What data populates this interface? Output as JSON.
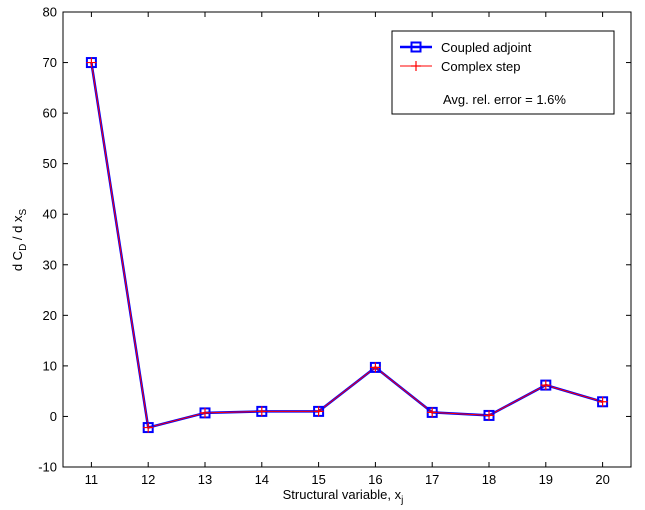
{
  "chart_data": {
    "type": "line",
    "title": "",
    "x": [
      11,
      12,
      13,
      14,
      15,
      16,
      17,
      18,
      19,
      20
    ],
    "xlim": [
      10.5,
      20.5
    ],
    "ylim": [
      -10,
      80
    ],
    "xticks": [
      11,
      12,
      13,
      14,
      15,
      16,
      17,
      18,
      19,
      20
    ],
    "yticks": [
      -10,
      0,
      10,
      20,
      30,
      40,
      50,
      60,
      70,
      80
    ],
    "xlabel": {
      "main": "Structural variable, x",
      "sub": "j"
    },
    "ylabel": {
      "p1": "d C",
      "s1": "D",
      "p2": " / d x",
      "s2": "S"
    },
    "grid": false,
    "legend_position": "top-right",
    "series": [
      {
        "name": "Coupled adjoint",
        "color": "#0000ff",
        "marker": "square",
        "values": [
          70,
          -2.2,
          0.7,
          1.0,
          1.0,
          9.7,
          0.8,
          0.2,
          6.2,
          2.9
        ]
      },
      {
        "name": "Complex step",
        "color": "#ff0000",
        "marker": "plus",
        "values": [
          70,
          -2.2,
          0.7,
          1.0,
          1.0,
          9.7,
          0.8,
          0.2,
          6.2,
          2.9
        ]
      }
    ],
    "annotation": "Avg. rel. error = 1.6%"
  }
}
